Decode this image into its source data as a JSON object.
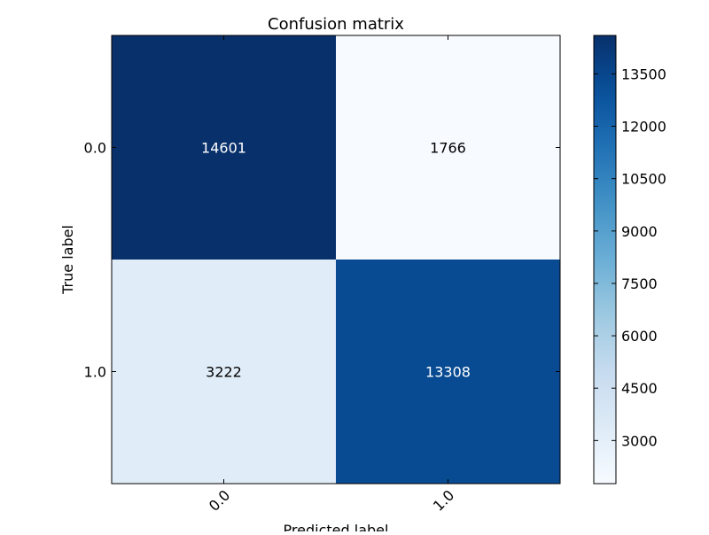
{
  "chart_data": {
    "type": "heatmap",
    "title": "Confusion matrix",
    "xlabel": "Predicted label",
    "ylabel": "True label",
    "x_categories": [
      "0.0",
      "1.0"
    ],
    "y_categories": [
      "0.0",
      "1.0"
    ],
    "values": [
      [
        14601,
        1766
      ],
      [
        3222,
        13308
      ]
    ],
    "colormap": "Blues",
    "color_range": [
      1766,
      14601
    ],
    "colorbar_ticks": [
      3000,
      4500,
      6000,
      7500,
      9000,
      10500,
      12000,
      13500
    ],
    "x_tick_rotation_deg": 45,
    "grid": false,
    "colors": {
      "low": "#f7fbff",
      "high": "#08306b",
      "label_dark": "#000000",
      "label_light": "#ffffff"
    }
  }
}
